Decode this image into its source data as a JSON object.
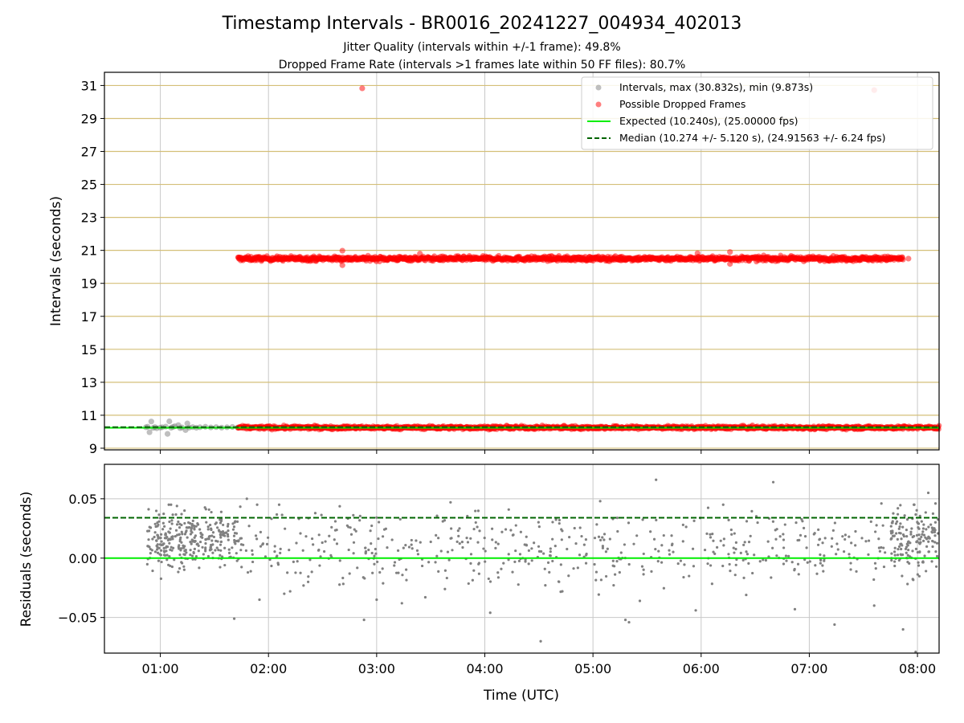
{
  "title": "Timestamp Intervals - BR0016_20241227_004934_402013",
  "subtitle_1": "Jitter Quality (intervals within +/-1 frame): 49.8%",
  "subtitle_2": "Dropped Frame Rate (intervals >1 frames late within 50 FF files): 80.7%",
  "colors": {
    "intervals": "#808080",
    "dropped": "#ff0000",
    "expected": "#00ee00",
    "median": "#006400",
    "hgrid": "#d4bf78",
    "grid": "#c8c8c8"
  },
  "chart_data": [
    {
      "type": "scatter",
      "ylabel": "Intervals (seconds)",
      "xlim": [
        "00:29",
        "08:12"
      ],
      "ylim": [
        8.9,
        31.8
      ],
      "y_ticks": [
        "9",
        "11",
        "13",
        "15",
        "17",
        "19",
        "21",
        "23",
        "25",
        "27",
        "29",
        "31"
      ],
      "grid": true,
      "legend_position": "top-right",
      "legend": [
        "Intervals, max (30.832s), min (9.873s)",
        "Possible Dropped Frames",
        "Expected (10.240s), (25.00000 fps)",
        "Median (10.274 +/- 5.120 s), (24.91563 +/- 6.24 fps)"
      ],
      "lines": [
        {
          "name": "Expected",
          "y": 10.24,
          "style": "solid"
        },
        {
          "name": "Median",
          "y": 10.274,
          "style": "dashed"
        }
      ],
      "series": [
        {
          "name": "Intervals",
          "points": [
            [
              "00:52",
              10.27
            ],
            [
              "00:53",
              10.3
            ],
            [
              "00:54",
              9.97
            ],
            [
              "00:55",
              10.62
            ],
            [
              "00:56",
              10.23
            ],
            [
              "00:57",
              10.28
            ],
            [
              "00:58",
              10.21
            ],
            [
              "01:00",
              10.25
            ],
            [
              "01:01",
              10.27
            ],
            [
              "01:03",
              10.31
            ],
            [
              "01:04",
              9.87
            ],
            [
              "01:05",
              10.63
            ],
            [
              "01:06",
              10.24
            ],
            [
              "01:07",
              10.29
            ],
            [
              "01:08",
              10.33
            ],
            [
              "01:10",
              10.4
            ],
            [
              "01:11",
              10.22
            ],
            [
              "01:12",
              10.26
            ],
            [
              "01:14",
              10.1
            ],
            [
              "01:15",
              10.5
            ],
            [
              "01:16",
              10.25
            ],
            [
              "01:18",
              10.28
            ],
            [
              "01:20",
              10.24
            ],
            [
              "01:22",
              10.27
            ],
            [
              "01:25",
              10.3
            ],
            [
              "01:28",
              10.26
            ],
            [
              "01:31",
              10.28
            ],
            [
              "01:34",
              10.25
            ],
            [
              "01:37",
              10.27
            ],
            [
              "01:40",
              10.29
            ],
            [
              "01:43",
              10.26
            ],
            [
              "01:55",
              10.22
            ],
            [
              "02:20",
              10.25
            ],
            [
              "02:55",
              10.24
            ],
            [
              "03:30",
              10.23
            ],
            [
              "04:10",
              10.24
            ],
            [
              "04:50",
              10.23
            ],
            [
              "05:40",
              10.24
            ],
            [
              "06:20",
              10.25
            ],
            [
              "06:58",
              10.23
            ],
            [
              "07:35",
              10.24
            ],
            [
              "08:10",
              10.26
            ],
            [
              "08:11",
              10.22
            ]
          ]
        },
        {
          "name": "Possible Dropped Frames",
          "points": [
            [
              "02:52",
              30.83
            ],
            [
              "07:36",
              30.72
            ],
            [
              "02:41",
              20.98
            ],
            [
              "02:41",
              20.1
            ],
            [
              "03:24",
              20.8
            ],
            [
              "03:35",
              20.42
            ],
            [
              "04:46",
              20.4
            ],
            [
              "05:58",
              20.82
            ],
            [
              "06:16",
              20.9
            ],
            [
              "06:16",
              20.18
            ],
            [
              "06:25",
              20.55
            ],
            [
              "07:55",
              20.5
            ],
            [
              "03:31",
              10.33
            ],
            [
              "04:44",
              10.37
            ],
            [
              "05:44",
              10.3
            ],
            [
              "07:53",
              10.33
            ],
            [
              "07:40",
              10.3
            ]
          ],
          "dense_bands": [
            {
              "x_start": "01:43",
              "x_end": "07:52",
              "y": 20.5,
              "spread": 0.07
            },
            {
              "x_start": "01:43",
              "x_end": "08:12",
              "y": 10.25,
              "spread": 0.05
            }
          ]
        }
      ]
    },
    {
      "type": "scatter",
      "ylabel": "Residuals (seconds)",
      "xlabel": "Time (UTC)",
      "x_ticks": [
        "01:00",
        "02:00",
        "03:00",
        "04:00",
        "05:00",
        "06:00",
        "07:00",
        "08:00"
      ],
      "xlim": [
        "00:29",
        "08:12"
      ],
      "ylim": [
        -0.08,
        0.079
      ],
      "y_ticks": [
        "−0.05",
        "0.00",
        "0.05"
      ],
      "grid": true,
      "lines": [
        {
          "name": "Expected",
          "y": 0.0,
          "style": "solid"
        },
        {
          "name": "Median",
          "y": 0.034,
          "style": "dashed"
        }
      ],
      "series": [
        {
          "name": "Residuals",
          "points": [
            [
              "05:35",
              0.066
            ],
            [
              "06:40",
              0.064
            ],
            [
              "08:06",
              0.055
            ],
            [
              "01:48",
              0.05
            ],
            [
              "05:04",
              0.048
            ],
            [
              "03:41",
              0.047
            ],
            [
              "08:10",
              0.046
            ],
            [
              "07:40",
              0.046
            ],
            [
              "01:41",
              -0.051
            ],
            [
              "02:53",
              -0.052
            ],
            [
              "05:18",
              -0.052
            ],
            [
              "05:20",
              -0.054
            ],
            [
              "07:14",
              -0.056
            ],
            [
              "07:52",
              -0.06
            ],
            [
              "04:31",
              -0.07
            ],
            [
              "07:59",
              -0.079
            ],
            [
              "03:00",
              -0.035
            ],
            [
              "03:14",
              -0.038
            ],
            [
              "03:27",
              -0.033
            ],
            [
              "04:03",
              -0.046
            ],
            [
              "04:43",
              -0.028
            ],
            [
              "05:26",
              -0.036
            ],
            [
              "05:57",
              -0.044
            ],
            [
              "06:25",
              -0.031
            ],
            [
              "06:52",
              -0.043
            ],
            [
              "07:36",
              -0.04
            ],
            [
              "01:55",
              -0.035
            ],
            [
              "02:22",
              -0.02
            ],
            [
              "02:45",
              -0.013
            ],
            [
              "03:50",
              0.017
            ],
            [
              "04:20",
              0.022
            ],
            [
              "06:05",
              0.02
            ],
            [
              "07:22",
              0.018
            ],
            [
              "02:35",
              0.026
            ],
            [
              "03:55",
              0.03
            ],
            [
              "05:50",
              0.028
            ]
          ],
          "dense_bands": [
            {
              "x_start": "00:52",
              "x_end": "01:45",
              "y_mean": 0.016,
              "spread": 0.022
            },
            {
              "x_start": "01:45",
              "x_end": "07:45",
              "y_mean": 0.008,
              "spread": 0.028
            },
            {
              "x_start": "07:45",
              "x_end": "08:12",
              "y_mean": 0.014,
              "spread": 0.026
            }
          ]
        }
      ]
    }
  ]
}
